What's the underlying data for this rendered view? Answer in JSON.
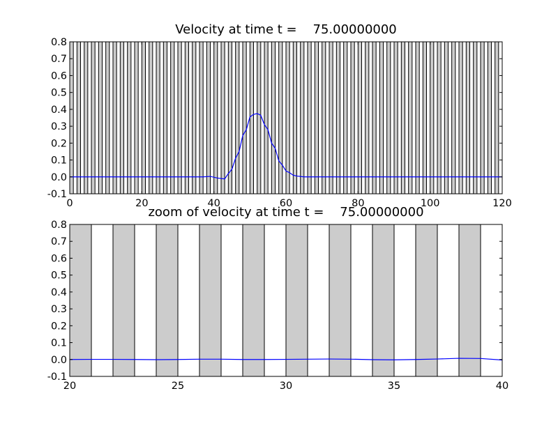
{
  "chart_data": [
    {
      "type": "line",
      "title": "Velocity at time t =    75.00000000",
      "xlabel": "",
      "ylabel": "",
      "xlim": [
        0,
        120
      ],
      "ylim": [
        -0.1,
        0.8
      ],
      "xticks": [
        0,
        20,
        40,
        60,
        80,
        100,
        120
      ],
      "yticks": [
        -0.1,
        0.0,
        0.1,
        0.2,
        0.3,
        0.4,
        0.5,
        0.6,
        0.7,
        0.8
      ],
      "bands": {
        "start": 0,
        "end": 120,
        "width": 1,
        "period": 2,
        "color": "#cccccc"
      },
      "grid": false,
      "legend": "none",
      "series": [
        {
          "color": "#0000ff",
          "x": [
            0,
            10,
            20,
            30,
            35,
            37,
            39,
            41,
            43,
            44,
            45,
            46,
            47,
            48,
            49,
            50,
            51,
            52,
            53,
            54,
            55,
            56,
            57,
            58,
            59,
            60,
            61,
            62,
            63,
            65,
            70,
            80,
            90,
            100,
            110,
            120
          ],
          "y": [
            0.0,
            0.0,
            0.0,
            0.0,
            0.0,
            0.0,
            0.003,
            -0.007,
            -0.012,
            0.02,
            0.045,
            0.11,
            0.15,
            0.245,
            0.28,
            0.355,
            0.37,
            0.375,
            0.365,
            0.31,
            0.28,
            0.2,
            0.17,
            0.095,
            0.07,
            0.035,
            0.025,
            0.01,
            0.005,
            0.0,
            0.0,
            0.0,
            0.0,
            0.0,
            0.0,
            0.0
          ]
        }
      ]
    },
    {
      "type": "line",
      "title": "zoom of velocity at time t =    75.00000000",
      "xlabel": "",
      "ylabel": "",
      "xlim": [
        20,
        40
      ],
      "ylim": [
        -0.1,
        0.8
      ],
      "xticks": [
        20,
        25,
        30,
        35,
        40
      ],
      "yticks": [
        -0.1,
        0.0,
        0.1,
        0.2,
        0.3,
        0.4,
        0.5,
        0.6,
        0.7,
        0.8
      ],
      "bands": {
        "start": 20,
        "end": 40,
        "width": 1,
        "period": 2,
        "color": "#cccccc"
      },
      "grid": false,
      "legend": "none",
      "series": [
        {
          "color": "#0000ff",
          "x": [
            20,
            21,
            22,
            23,
            24,
            25,
            26,
            27,
            28,
            29,
            30,
            31,
            32,
            33,
            34,
            35,
            36,
            37,
            38,
            39,
            40
          ],
          "y": [
            0.0,
            0.001,
            0.001,
            0.0,
            -0.001,
            0.0,
            0.002,
            0.002,
            0.0,
            0.0,
            0.001,
            0.002,
            0.003,
            0.002,
            -0.001,
            -0.002,
            0.0,
            0.003,
            0.007,
            0.006,
            -0.003
          ]
        }
      ]
    }
  ]
}
